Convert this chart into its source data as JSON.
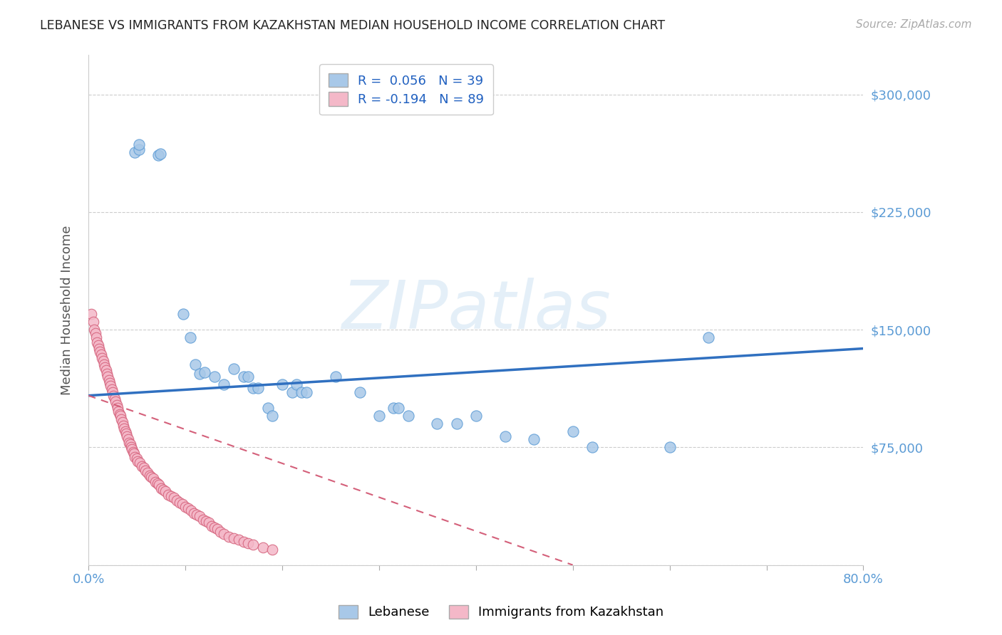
{
  "title": "LEBANESE VS IMMIGRANTS FROM KAZAKHSTAN MEDIAN HOUSEHOLD INCOME CORRELATION CHART",
  "source": "Source: ZipAtlas.com",
  "ylabel": "Median Household Income",
  "xlim": [
    0.0,
    0.8
  ],
  "ylim": [
    0,
    325000
  ],
  "yticks": [
    0,
    75000,
    150000,
    225000,
    300000
  ],
  "ytick_labels_right": [
    "",
    "$75,000",
    "$150,000",
    "$225,000",
    "$300,000"
  ],
  "xticks": [
    0.0,
    0.1,
    0.2,
    0.3,
    0.4,
    0.5,
    0.6,
    0.7,
    0.8
  ],
  "xtick_labels": [
    "0.0%",
    "",
    "",
    "",
    "",
    "",
    "",
    "",
    "80.0%"
  ],
  "watermark": "ZIPatlas",
  "blue_color": "#a8c8e8",
  "blue_color_edge": "#5b9bd5",
  "pink_color": "#f4b8c8",
  "pink_color_edge": "#d4607a",
  "blue_scatter_x": [
    0.048,
    0.052,
    0.052,
    0.072,
    0.074,
    0.098,
    0.105,
    0.11,
    0.115,
    0.12,
    0.13,
    0.14,
    0.15,
    0.16,
    0.165,
    0.17,
    0.175,
    0.185,
    0.19,
    0.2,
    0.21,
    0.215,
    0.22,
    0.225,
    0.255,
    0.28,
    0.3,
    0.315,
    0.32,
    0.33,
    0.36,
    0.38,
    0.4,
    0.43,
    0.46,
    0.5,
    0.52,
    0.6,
    0.64
  ],
  "blue_scatter_y": [
    263000,
    265000,
    268000,
    261000,
    262000,
    160000,
    145000,
    128000,
    122000,
    123000,
    120000,
    115000,
    125000,
    120000,
    120000,
    113000,
    113000,
    100000,
    95000,
    115000,
    110000,
    115000,
    110000,
    110000,
    120000,
    110000,
    95000,
    100000,
    100000,
    95000,
    90000,
    90000,
    95000,
    82000,
    80000,
    85000,
    75000,
    75000,
    145000
  ],
  "pink_scatter_x": [
    0.003,
    0.005,
    0.006,
    0.007,
    0.008,
    0.009,
    0.01,
    0.011,
    0.012,
    0.013,
    0.014,
    0.015,
    0.016,
    0.017,
    0.018,
    0.019,
    0.02,
    0.021,
    0.022,
    0.023,
    0.024,
    0.025,
    0.026,
    0.027,
    0.028,
    0.029,
    0.03,
    0.031,
    0.032,
    0.033,
    0.034,
    0.035,
    0.036,
    0.037,
    0.038,
    0.039,
    0.04,
    0.041,
    0.042,
    0.043,
    0.044,
    0.045,
    0.046,
    0.047,
    0.048,
    0.05,
    0.051,
    0.053,
    0.055,
    0.057,
    0.059,
    0.061,
    0.063,
    0.065,
    0.067,
    0.069,
    0.071,
    0.073,
    0.075,
    0.077,
    0.079,
    0.082,
    0.085,
    0.088,
    0.091,
    0.094,
    0.097,
    0.1,
    0.103,
    0.106,
    0.109,
    0.112,
    0.115,
    0.118,
    0.121,
    0.124,
    0.127,
    0.13,
    0.133,
    0.136,
    0.14,
    0.145,
    0.15,
    0.155,
    0.16,
    0.165,
    0.17,
    0.18,
    0.19
  ],
  "pink_scatter_y": [
    160000,
    155000,
    150000,
    148000,
    145000,
    142000,
    140000,
    138000,
    136000,
    134000,
    132000,
    130000,
    128000,
    126000,
    124000,
    122000,
    120000,
    118000,
    116000,
    114000,
    112000,
    110000,
    108000,
    106000,
    104000,
    102000,
    100000,
    98000,
    96000,
    95000,
    93000,
    91000,
    89000,
    87000,
    85000,
    84000,
    82000,
    80000,
    78000,
    77000,
    75000,
    74000,
    72000,
    71000,
    69000,
    68000,
    66000,
    65000,
    63000,
    62000,
    60000,
    59000,
    57000,
    56000,
    55000,
    53000,
    52000,
    51000,
    49000,
    48000,
    47000,
    45000,
    44000,
    43000,
    41000,
    40000,
    39000,
    37000,
    36000,
    35000,
    33000,
    32000,
    31000,
    29000,
    28000,
    27000,
    25000,
    24000,
    23000,
    21000,
    20000,
    18000,
    17000,
    16000,
    15000,
    14000,
    13000,
    11000,
    10000
  ],
  "blue_line_x": [
    0.0,
    0.8
  ],
  "blue_line_y": [
    108000,
    138000
  ],
  "pink_line_x": [
    0.0,
    0.5
  ],
  "pink_line_y": [
    108000,
    0
  ],
  "background_color": "#ffffff",
  "grid_color": "#cccccc",
  "tick_label_color": "#5b9bd5",
  "label_color": "#555555"
}
